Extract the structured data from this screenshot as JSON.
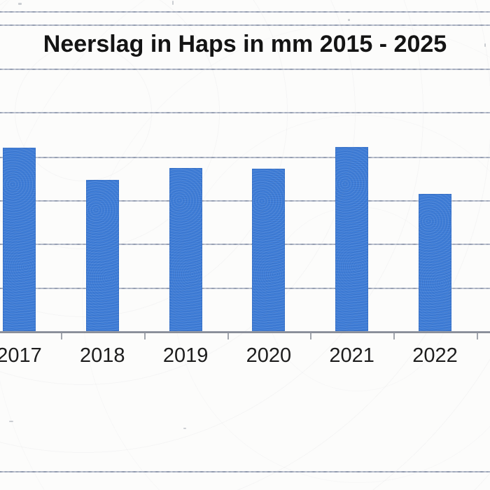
{
  "chart_data": {
    "type": "bar",
    "title": "Neerslag in Haps in mm 2015 - 2025",
    "categories": [
      "2017",
      "2018",
      "2019",
      "2020",
      "2021",
      "2022"
    ],
    "values_gridline_units": [
      4.17,
      3.44,
      3.71,
      3.69,
      4.19,
      3.12
    ],
    "xlabel": "",
    "ylabel": "",
    "y_axis_tick_labels": "not visible (cropped off left edge of scan)",
    "crop_note": "title covers 2015 - 2025 but only the 2017-2022 bars are inside the scanned crop",
    "legend": "none",
    "grid": "horizontal gridlines on",
    "bar_color": "#3f7ed8",
    "gridline_color": "#97a0b4",
    "axis_color": "#8a8f99",
    "title_color": "#141414",
    "label_color": "#1d1d1d"
  }
}
